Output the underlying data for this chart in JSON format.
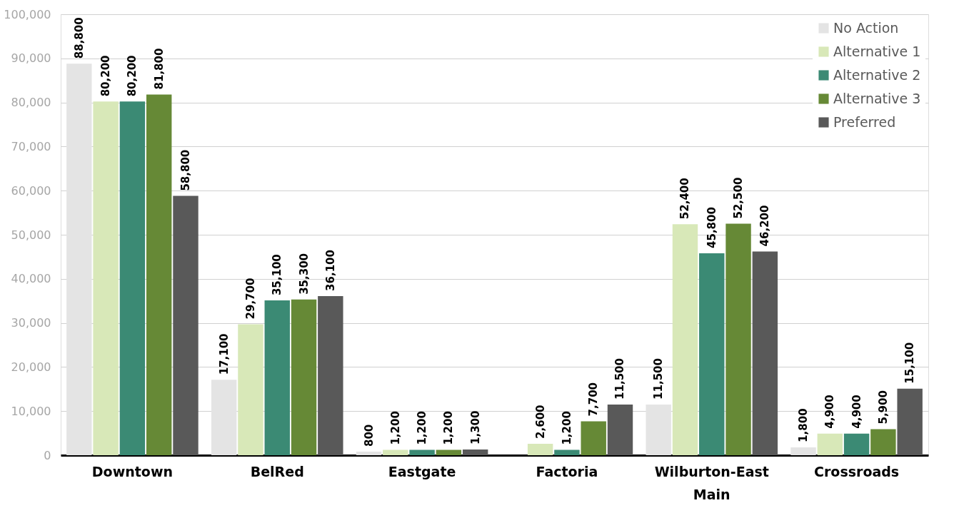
{
  "chart_data": {
    "type": "bar",
    "categories": [
      "Downtown",
      "BelRed",
      "Eastgate",
      "Factoria",
      "Wilburton-East Main",
      "Crossroads"
    ],
    "series": [
      {
        "name": "No Action",
        "color": "#e4e4e4",
        "values": [
          88800,
          17100,
          800,
          null,
          11500,
          1800
        ],
        "value_labels": [
          "88,800",
          "17,100",
          "800",
          null,
          "11,500",
          "1,800"
        ]
      },
      {
        "name": "Alternative 1",
        "color": "#d8e8b8",
        "values": [
          80200,
          29700,
          1200,
          2600,
          52400,
          4900
        ],
        "value_labels": [
          "80,200",
          "29,700",
          "1,200",
          "2,600",
          "52,400",
          "4,900"
        ]
      },
      {
        "name": "Alternative 2",
        "color": "#3b8a74",
        "values": [
          80200,
          35100,
          1200,
          1200,
          45800,
          4900
        ],
        "value_labels": [
          "80,200",
          "35,100",
          "1,200",
          "1,200",
          "45,800",
          "4,900"
        ]
      },
      {
        "name": "Alternative 3",
        "color": "#668936",
        "values": [
          81800,
          35300,
          1200,
          7700,
          52500,
          5900
        ],
        "value_labels": [
          "81,800",
          "35,300",
          "1,200",
          "7,700",
          "52,500",
          "5,900"
        ]
      },
      {
        "name": "Preferred",
        "color": "#595959",
        "values": [
          58800,
          36100,
          1300,
          11500,
          46200,
          15100
        ],
        "value_labels": [
          "58,800",
          "36,100",
          "1,300",
          "11,500",
          "46,200",
          "15,100"
        ]
      }
    ],
    "ylim": [
      0,
      100000
    ],
    "yticks": [
      0,
      {
        "value": 10000,
        "label": "10,000"
      },
      {
        "value": 20000,
        "label": "20,000"
      },
      {
        "value": 30000,
        "label": "30,000"
      },
      {
        "value": 40000,
        "label": "40,000"
      },
      {
        "value": 50000,
        "label": "50,000"
      },
      {
        "value": 60000,
        "label": "60,000"
      },
      {
        "value": 70000,
        "label": "70,000"
      },
      {
        "value": 80000,
        "label": "80,000"
      },
      {
        "value": 90000,
        "label": "90,000"
      },
      {
        "value": 100000,
        "label": "100,000"
      }
    ],
    "grid": "y",
    "legend": "top right"
  }
}
